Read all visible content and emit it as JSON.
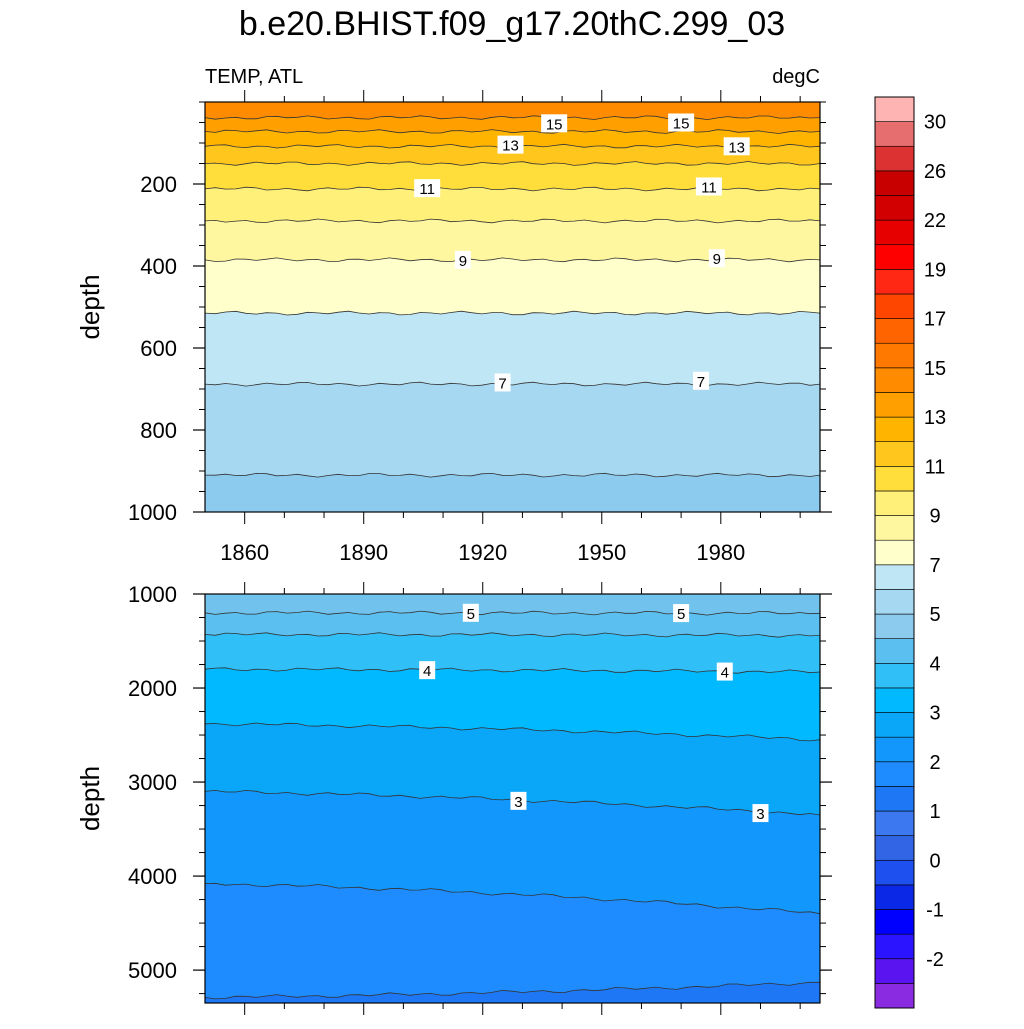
{
  "title": "b.e20.BHIST.f09_g17.20thC.299_03",
  "chart_data": [
    {
      "type": "contour",
      "panel": "upper",
      "left_label": "TEMP, ATL",
      "right_label": "degC",
      "ylabel": "depth",
      "xlim": [
        1850,
        2005
      ],
      "ylim": [
        0,
        1000
      ],
      "y_inverted": true,
      "xticks": [
        1860,
        1890,
        1920,
        1950,
        1980
      ],
      "xtick_labels": [
        "1860",
        "1890",
        "1920",
        "1950",
        "1980"
      ],
      "yticks": [
        200,
        400,
        600,
        800,
        1000
      ],
      "ytick_labels": [
        "200",
        "400",
        "600",
        "800",
        "1000"
      ],
      "bands": [
        {
          "from": 0,
          "to": 38,
          "color": "#ff8c00"
        },
        {
          "from": 38,
          "to": 72,
          "color": "#ffa000"
        },
        {
          "from": 72,
          "to": 108,
          "color": "#ffb400"
        },
        {
          "from": 108,
          "to": 150,
          "color": "#ffc61e"
        },
        {
          "from": 150,
          "to": 212,
          "color": "#ffde3c"
        },
        {
          "from": 212,
          "to": 290,
          "color": "#fff07a"
        },
        {
          "from": 290,
          "to": 385,
          "color": "#fff6a0"
        },
        {
          "from": 385,
          "to": 515,
          "color": "#ffffcc"
        },
        {
          "from": 515,
          "to": 688,
          "color": "#bfe6f5"
        },
        {
          "from": 688,
          "to": 910,
          "color": "#a6d8f2"
        },
        {
          "from": 910,
          "to": 1000,
          "color": "#8ccbee"
        }
      ],
      "contours": [
        {
          "depth": 38
        },
        {
          "depth": 72
        },
        {
          "depth": 108
        },
        {
          "depth": 150
        },
        {
          "depth": 212
        },
        {
          "depth": 290
        },
        {
          "depth": 385
        },
        {
          "depth": 515
        },
        {
          "depth": 688
        },
        {
          "depth": 910
        }
      ],
      "line_labels": [
        {
          "text": "15",
          "year": 1938,
          "depth": 52
        },
        {
          "text": "15",
          "year": 1970,
          "depth": 50
        },
        {
          "text": "13",
          "year": 1927,
          "depth": 104
        },
        {
          "text": "13",
          "year": 1984,
          "depth": 108
        },
        {
          "text": "11",
          "year": 1906,
          "depth": 210
        },
        {
          "text": "11",
          "year": 1977,
          "depth": 206
        },
        {
          "text": "9",
          "year": 1915,
          "depth": 385
        },
        {
          "text": "9",
          "year": 1979,
          "depth": 381
        },
        {
          "text": "7",
          "year": 1925,
          "depth": 684
        },
        {
          "text": "7",
          "year": 1975,
          "depth": 680
        }
      ]
    },
    {
      "type": "contour",
      "panel": "lower",
      "ylabel": "depth",
      "xlim": [
        1850,
        2005
      ],
      "ylim": [
        1000,
        5350
      ],
      "y_inverted": true,
      "yticks": [
        1000,
        2000,
        3000,
        4000,
        5000
      ],
      "ytick_labels": [
        "1000",
        "2000",
        "3000",
        "4000",
        "5000"
      ],
      "bands": [
        {
          "from": 1000,
          "to": 1200,
          "color": "#71c3ee"
        },
        {
          "from": 1200,
          "to": 1430,
          "color": "#5bc0f0"
        },
        {
          "from": 1430,
          "to": 1800,
          "color": "#31bff8"
        },
        {
          "from": 1800,
          "to": 2380,
          "color": "#00b9ff"
        },
        {
          "from": 2380,
          "to": 3100,
          "color": "#0aa6f8"
        },
        {
          "from": 3100,
          "to": 4080,
          "color": "#1298fc"
        },
        {
          "from": 4080,
          "to": 5300,
          "color": "#1e8cff"
        },
        {
          "from": 5300,
          "to": 5350,
          "color": "#1e78f5"
        }
      ],
      "contours": [
        {
          "depth_start": 1200,
          "depth_end": 1205
        },
        {
          "depth_start": 1430,
          "depth_end": 1440
        },
        {
          "depth_start": 1800,
          "depth_end": 1830
        },
        {
          "depth_start": 2380,
          "depth_end": 2550
        },
        {
          "depth_start": 3100,
          "depth_end": 3350
        },
        {
          "depth_start": 4080,
          "depth_end": 4400
        },
        {
          "depth_start": 5290,
          "depth_end": 5130
        }
      ],
      "line_labels": [
        {
          "text": "5",
          "year": 1917,
          "depth": 1200
        },
        {
          "text": "5",
          "year": 1970,
          "depth": 1203
        },
        {
          "text": "4",
          "year": 1906,
          "depth": 1810
        },
        {
          "text": "4",
          "year": 1981,
          "depth": 1825
        },
        {
          "text": "3",
          "year": 1929,
          "depth": 3200
        },
        {
          "text": "3",
          "year": 1990,
          "depth": 3330
        }
      ]
    }
  ],
  "colorbar": {
    "colors": [
      "#8a2be2",
      "#5a14f0",
      "#2b14ff",
      "#0000ff",
      "#0a28e6",
      "#1e50f0",
      "#3264e6",
      "#3c78f0",
      "#1e78f5",
      "#1e8cff",
      "#1298fc",
      "#0aa6f8",
      "#00b9ff",
      "#31bff8",
      "#5bc0f0",
      "#8ccbee",
      "#a6d8f2",
      "#bfe6f5",
      "#ffffcc",
      "#fff6a0",
      "#fff07a",
      "#ffde3c",
      "#ffc61e",
      "#ffb400",
      "#ffa000",
      "#ff8c00",
      "#ff7800",
      "#ff6400",
      "#ff4600",
      "#ff2814",
      "#ff0000",
      "#e60000",
      "#d20000",
      "#c80000",
      "#dc3232",
      "#e66e6e",
      "#ffb4b4"
    ],
    "labels": [
      {
        "text": "-2",
        "boundary": 1
      },
      {
        "text": "-1",
        "boundary": 2
      },
      {
        "text": "0",
        "boundary": 3
      },
      {
        "text": "1",
        "boundary": 4
      },
      {
        "text": "2",
        "boundary": 5
      },
      {
        "text": "3",
        "boundary": 6
      },
      {
        "text": "4",
        "boundary": 7
      },
      {
        "text": "5",
        "boundary": 8
      },
      {
        "text": "7",
        "boundary": 9
      },
      {
        "text": "9",
        "boundary": 10
      },
      {
        "text": "11",
        "boundary": 11
      },
      {
        "text": "13",
        "boundary": 12
      },
      {
        "text": "15",
        "boundary": 13
      },
      {
        "text": "17",
        "boundary": 14
      },
      {
        "text": "19",
        "boundary": 15
      },
      {
        "text": "22",
        "boundary": 16
      },
      {
        "text": "26",
        "boundary": 17
      },
      {
        "text": "30",
        "boundary": 18
      }
    ]
  }
}
